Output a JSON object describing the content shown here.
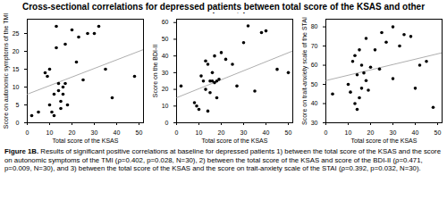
{
  "title": "Cross-sectional correlations for depressed patients between total score of the KSAS and other psychometrics",
  "caption": {
    "label": "Figure 1B.",
    "text": "Results of significant positive correlations at baseline for depressed patients 1) between the total score of the KSAS and the score on autonomic symptoms of the TMI (ρ=0.402, p=0.028, N=30), 2) between the total score of the KSAS and score of the BDI-II (ρ=0.471, p=0.009, N=30), and 3) between the total score of the KSAS and the score on trait-anxiety scale of the STAI (ρ=0.392, p=0.032, N=30)."
  },
  "chart_data": [
    {
      "type": "scatter",
      "x_label": "Total score of the KSAS",
      "y_label": "Score on autonomic symptoms of the TMI",
      "color": "#000000",
      "x": [
        2,
        5,
        8,
        9,
        10,
        10,
        11,
        12,
        12,
        13,
        13,
        14,
        14,
        15,
        15,
        16,
        16,
        17,
        17,
        18,
        20,
        22,
        23,
        25,
        27,
        30,
        32,
        35,
        38,
        48
      ],
      "y": [
        2,
        3,
        14,
        13,
        15,
        5,
        3,
        8,
        2,
        27,
        21,
        11,
        9,
        4,
        6,
        10,
        8,
        11,
        22,
        5,
        26,
        17,
        24,
        12,
        25,
        25,
        27,
        15,
        7,
        13
      ],
      "fit": {
        "x": [
          0,
          52
        ],
        "y": [
          8,
          20.5
        ]
      },
      "xlim": [
        0,
        52
      ],
      "xticks": [
        0,
        10,
        20,
        30,
        40,
        50
      ],
      "ylim": [
        0,
        29
      ],
      "yticks": [
        0,
        5,
        10,
        15,
        20,
        25
      ]
    },
    {
      "type": "scatter",
      "x_label": "Total score of the KSAS",
      "y_label": "Score on the BDI-II",
      "color": "#000000",
      "x": [
        2,
        8,
        9,
        10,
        11,
        12,
        13,
        13,
        14,
        14,
        15,
        15,
        16,
        16,
        17,
        17,
        18,
        18,
        19,
        20,
        22,
        25,
        27,
        30,
        32,
        35,
        38,
        40,
        45,
        50
      ],
      "y": [
        22,
        12,
        10,
        8,
        28,
        25,
        37,
        20,
        35,
        7,
        18,
        25,
        30,
        25,
        24,
        40,
        25,
        15,
        26,
        42,
        38,
        35,
        22,
        48,
        58,
        19,
        54,
        55,
        32,
        30
      ],
      "fit": {
        "x": [
          0,
          52
        ],
        "y": [
          15,
          43
        ]
      },
      "xlim": [
        0,
        52
      ],
      "xticks": [
        0,
        10,
        20,
        30,
        40,
        50
      ],
      "ylim": [
        0,
        62
      ],
      "yticks": [
        0,
        10,
        20,
        30,
        40,
        50,
        60
      ]
    },
    {
      "type": "scatter",
      "x_label": "Total score of the KSAS",
      "y_label": "Score on trait-anxiety scale of the STAI",
      "color": "#000000",
      "x": [
        3,
        10,
        11,
        12,
        13,
        13,
        14,
        14,
        15,
        15,
        16,
        16,
        17,
        18,
        18,
        19,
        20,
        22,
        24,
        25,
        27,
        30,
        30,
        33,
        35,
        38,
        40,
        42,
        45,
        48
      ],
      "y": [
        45,
        50,
        46,
        62,
        65,
        40,
        55,
        37,
        68,
        43,
        60,
        48,
        56,
        74,
        52,
        47,
        59,
        68,
        58,
        77,
        72,
        80,
        53,
        70,
        76,
        75,
        48,
        60,
        62,
        38
      ],
      "fit": {
        "x": [
          0,
          52
        ],
        "y": [
          52,
          66.5
        ]
      },
      "xlim": [
        0,
        52
      ],
      "xticks": [
        0,
        10,
        20,
        30,
        40,
        50
      ],
      "ylim": [
        30,
        84
      ],
      "yticks": [
        30,
        40,
        50,
        60,
        70,
        80
      ]
    }
  ]
}
